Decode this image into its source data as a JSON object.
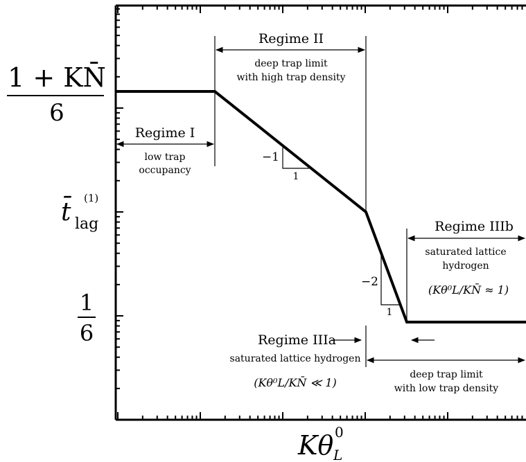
{
  "axes": {
    "y_label_top_numerator": "1 + KN̄",
    "y_label_top_denominator": "6",
    "y_label_middle_base": "t̄",
    "y_label_middle_sub": "lag",
    "y_label_middle_sup": "(1)",
    "y_label_bottom_numerator": "1",
    "y_label_bottom_denominator": "6",
    "x_label_base": "Kθ",
    "x_label_sup": "0",
    "x_label_sub": "L"
  },
  "regimes": {
    "regime1": {
      "title": "Regime I",
      "line1": "low trap",
      "line2": "occupancy"
    },
    "regime2": {
      "title": "Regime II",
      "line1": "deep trap limit",
      "line2": "with high trap density"
    },
    "regime3a": {
      "title": "Regime IIIa",
      "line1": "saturated lattice hydrogen",
      "condition": "(Kθ⁰L/KN̄ ≪ 1)"
    },
    "regime3b": {
      "title": "Regime IIIb",
      "line1": "saturated lattice",
      "line2": "hydrogen",
      "condition": "(Kθ⁰L/KN̄ ≈ 1)"
    },
    "deep_low": {
      "line1": "deep trap limit",
      "line2": "with low trap density"
    }
  },
  "slopes": {
    "slope1": {
      "rise": "−1",
      "run": "1"
    },
    "slope2": {
      "rise": "−2",
      "run": "1"
    }
  }
}
